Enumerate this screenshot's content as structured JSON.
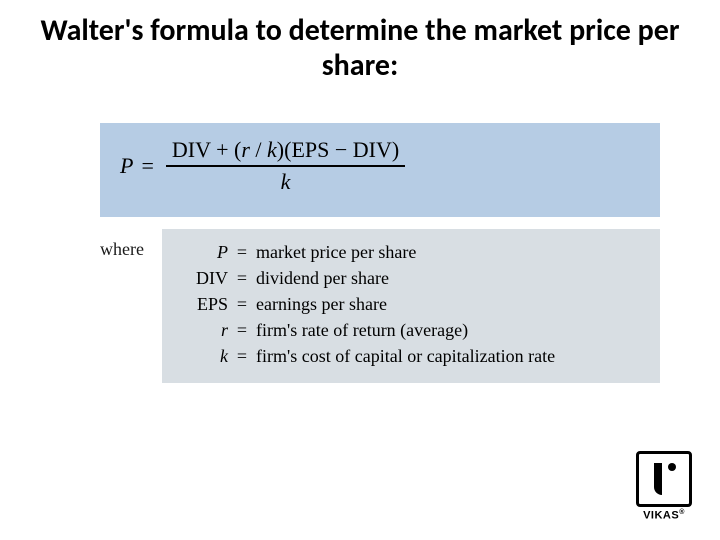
{
  "title": "Walter's formula to determine the market price per share:",
  "formula": {
    "background": "#b6cce4",
    "lhs": "P",
    "equals": "=",
    "numerator_parts": {
      "div1": "DIV",
      "plus": "+",
      "lp": "(",
      "r": "r",
      "slash": "/",
      "k": "k",
      "rp": ")",
      "lp2": "(",
      "eps": "EPS",
      "minus": "−",
      "div2": "DIV",
      "rp2": ")"
    },
    "denominator": "k",
    "font_family": "Times New Roman",
    "font_size_pt": 17
  },
  "definitions": {
    "background": "#d8dee3",
    "where_label": "where",
    "rows": [
      {
        "symbol": "P",
        "symbol_italic": true,
        "eq": "=",
        "desc": "market price per share"
      },
      {
        "symbol": "DIV",
        "symbol_italic": false,
        "eq": "=",
        "desc": "dividend per share"
      },
      {
        "symbol": "EPS",
        "symbol_italic": false,
        "eq": "=",
        "desc": "earnings per share"
      },
      {
        "symbol": "r",
        "symbol_italic": true,
        "eq": "=",
        "desc": "firm's rate of return (average)"
      },
      {
        "symbol": "k",
        "symbol_italic": true,
        "eq": "=",
        "desc": "firm's cost of capital or capitalization rate"
      }
    ],
    "font_size_pt": 14
  },
  "logo": {
    "text": "VIKAS",
    "reg": "®"
  },
  "colors": {
    "page_bg": "#ffffff",
    "text": "#000000"
  }
}
